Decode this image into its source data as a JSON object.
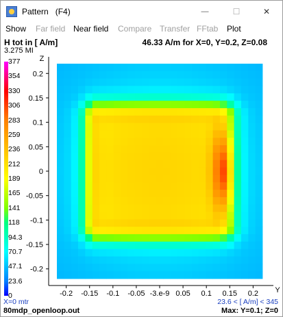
{
  "window": {
    "title": "Pattern",
    "fkey": "(F4)",
    "controls": {
      "minimize": "—",
      "maximize": "☐",
      "close": "✕"
    }
  },
  "menu": [
    {
      "label": "Show",
      "enabled": true
    },
    {
      "label": "Far field",
      "enabled": false
    },
    {
      "label": "Near field",
      "enabled": true
    },
    {
      "label": "Compare",
      "enabled": false
    },
    {
      "label": "Transfer",
      "enabled": false
    },
    {
      "label": "FFtab",
      "enabled": false
    },
    {
      "label": "Plot",
      "enabled": true
    }
  ],
  "header": {
    "left": "H tot in [ A/m]",
    "right": "46.33  A/m for X=0, Y=0.2, Z=0.08",
    "sub": "3.275 MI"
  },
  "colorbar": {
    "labels": [
      "377",
      "354",
      "330",
      "306",
      "283",
      "259",
      "236",
      "212",
      "189",
      "165",
      "141",
      "118",
      "94.3",
      "70.7",
      "47.1",
      "23.6",
      "0"
    ],
    "colors": [
      "#ff00ff",
      "#ff0080",
      "#ff0000",
      "#ff4000",
      "#ff8000",
      "#ffa000",
      "#ffc000",
      "#ffe000",
      "#ffff00",
      "#c0ff00",
      "#80ff00",
      "#00ff80",
      "#00ffc0",
      "#00ffff",
      "#00c0ff",
      "#0080ff",
      "#0000ff"
    ]
  },
  "footer": {
    "left_top": "X=0 mtr",
    "left_bottom": "80mdp_openloop.out",
    "right_top": "23.6 < [ A/m] < 345",
    "right_bottom": "Max: Y=0.1; Z=0"
  },
  "chart_data": {
    "type": "heatmap",
    "xlabel": "Y",
    "ylabel": "Z",
    "x_ticks": [
      "-0.2",
      "-0.15",
      "-0.1",
      "-0.05",
      "-3.e-9",
      "0.05",
      "0.1",
      "0.15",
      "0.2"
    ],
    "y_ticks": [
      "0.2",
      "0.15",
      "0.1",
      "0.05",
      "0",
      "-0.05",
      "-0.1",
      "-0.15",
      "-0.2"
    ],
    "xlim": [
      -0.22,
      0.22
    ],
    "ylim": [
      -0.22,
      0.22
    ],
    "unit": "A/m",
    "value_range": [
      23.6,
      345
    ],
    "max_at": {
      "Y": 0.1,
      "Z": 0
    },
    "description_level": "estimated field magnitude grid"
  }
}
